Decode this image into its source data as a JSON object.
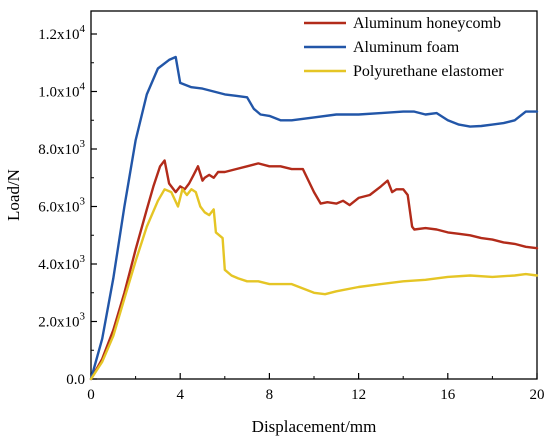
{
  "chart_data": {
    "type": "line",
    "xlabel": "Displacement/mm",
    "ylabel": "Load/N",
    "xlim": [
      0,
      20
    ],
    "ylim": [
      0,
      12800
    ],
    "grid": false,
    "legend_position": "top-right",
    "x_ticks": [
      {
        "value": 0,
        "label": "0"
      },
      {
        "value": 4,
        "label": "4"
      },
      {
        "value": 8,
        "label": "8"
      },
      {
        "value": 12,
        "label": "12"
      },
      {
        "value": 16,
        "label": "16"
      },
      {
        "value": 20,
        "label": "20"
      }
    ],
    "y_ticks": [
      {
        "value": 0,
        "mant": "0.0",
        "exp": ""
      },
      {
        "value": 2000,
        "mant": "2.0x10",
        "exp": "3"
      },
      {
        "value": 4000,
        "mant": "4.0x10",
        "exp": "3"
      },
      {
        "value": 6000,
        "mant": "6.0x10",
        "exp": "3"
      },
      {
        "value": 8000,
        "mant": "8.0x10",
        "exp": "3"
      },
      {
        "value": 10000,
        "mant": "1.0x10",
        "exp": "4"
      },
      {
        "value": 12000,
        "mant": "1.2x10",
        "exp": "4"
      }
    ],
    "series": [
      {
        "name": "Aluminum honeycomb",
        "color": "#b22b1a",
        "x": [
          0,
          0.5,
          1,
          1.5,
          2,
          2.5,
          2.8,
          3.1,
          3.3,
          3.5,
          3.8,
          4.0,
          4.2,
          4.4,
          4.6,
          4.8,
          5.0,
          5.1,
          5.3,
          5.5,
          5.7,
          6.0,
          6.5,
          7.0,
          7.5,
          8.0,
          8.5,
          9.0,
          9.5,
          10.0,
          10.3,
          10.6,
          11.0,
          11.3,
          11.6,
          12.0,
          12.5,
          13.0,
          13.3,
          13.5,
          13.7,
          14.0,
          14.2,
          14.4,
          14.5,
          15.0,
          15.5,
          16.0,
          16.5,
          17.0,
          17.5,
          18.0,
          18.5,
          19.0,
          19.5,
          20.0
        ],
        "y": [
          0,
          700,
          1700,
          3000,
          4500,
          5900,
          6700,
          7400,
          7600,
          6800,
          6500,
          6700,
          6600,
          6800,
          7100,
          7400,
          6900,
          7000,
          7100,
          7000,
          7200,
          7200,
          7300,
          7400,
          7500,
          7400,
          7400,
          7300,
          7300,
          6500,
          6100,
          6150,
          6100,
          6200,
          6050,
          6300,
          6400,
          6700,
          6900,
          6500,
          6600,
          6600,
          6400,
          5300,
          5200,
          5250,
          5200,
          5100,
          5050,
          5000,
          4900,
          4850,
          4750,
          4700,
          4600,
          4550
        ]
      },
      {
        "name": "Aluminum foam",
        "color": "#2256a8",
        "x": [
          0,
          0.5,
          1,
          1.5,
          2,
          2.5,
          3.0,
          3.5,
          3.8,
          4.0,
          4.5,
          5.0,
          5.5,
          6.0,
          6.5,
          7.0,
          7.3,
          7.6,
          8.0,
          8.5,
          9.0,
          10.0,
          11.0,
          12.0,
          13.0,
          14.0,
          14.5,
          15.0,
          15.5,
          16.0,
          16.5,
          17.0,
          17.5,
          18.0,
          18.5,
          19.0,
          19.5,
          20.0
        ],
        "y": [
          0,
          1400,
          3500,
          6000,
          8300,
          9900,
          10800,
          11100,
          11200,
          10300,
          10150,
          10100,
          10000,
          9900,
          9850,
          9800,
          9400,
          9200,
          9150,
          9000,
          9000,
          9100,
          9200,
          9200,
          9250,
          9300,
          9300,
          9200,
          9250,
          9000,
          8850,
          8780,
          8800,
          8850,
          8900,
          9000,
          9300,
          9300
        ]
      },
      {
        "name": "Polyurethane elastomer",
        "color": "#e5c525",
        "x": [
          0,
          0.5,
          1,
          1.5,
          2,
          2.5,
          3.0,
          3.3,
          3.6,
          3.9,
          4.1,
          4.3,
          4.5,
          4.7,
          4.9,
          5.1,
          5.3,
          5.5,
          5.6,
          5.9,
          6.0,
          6.3,
          6.6,
          7.0,
          7.5,
          8.0,
          9.0,
          10.0,
          10.5,
          11.0,
          12.0,
          13.0,
          14.0,
          15.0,
          16.0,
          17.0,
          18.0,
          19.0,
          19.5,
          20.0
        ],
        "y": [
          0,
          600,
          1500,
          2800,
          4100,
          5300,
          6200,
          6600,
          6500,
          6000,
          6600,
          6400,
          6600,
          6500,
          6000,
          5800,
          5700,
          5900,
          5100,
          4900,
          3800,
          3600,
          3500,
          3400,
          3400,
          3300,
          3300,
          3000,
          2950,
          3050,
          3200,
          3300,
          3400,
          3450,
          3550,
          3600,
          3550,
          3600,
          3650,
          3600
        ]
      }
    ]
  }
}
